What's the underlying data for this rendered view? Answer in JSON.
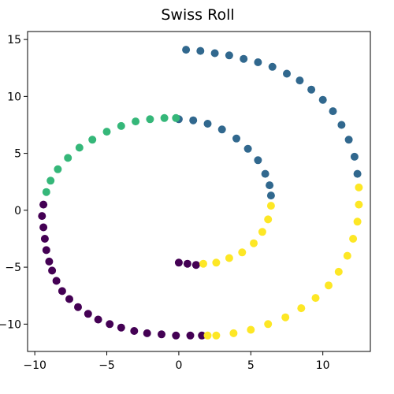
{
  "chart_data": {
    "type": "scatter",
    "title": "Swiss Roll",
    "xlabel": "",
    "ylabel": "",
    "xlim": [
      -10.5,
      13.3
    ],
    "ylim": [
      -12.4,
      15.7
    ],
    "xticks": [
      -10,
      -5,
      0,
      5,
      10
    ],
    "yticks": [
      -10,
      -5,
      0,
      5,
      10,
      15
    ],
    "xtick_labels": [
      "−10",
      "−5",
      "0",
      "5",
      "10"
    ],
    "ytick_labels": [
      "−10",
      "−5",
      "0",
      "5",
      "10",
      "15"
    ],
    "grid": false,
    "legend": "none",
    "series": [
      {
        "color": "#440154",
        "points": [
          [
            0.0,
            -4.6
          ],
          [
            0.6,
            -4.7
          ],
          [
            1.2,
            -4.8
          ],
          [
            -9.4,
            0.5
          ],
          [
            -9.5,
            -0.5
          ],
          [
            -9.4,
            -1.5
          ],
          [
            -9.3,
            -2.5
          ],
          [
            -9.2,
            -3.5
          ],
          [
            -9.0,
            -4.5
          ],
          [
            -8.8,
            -5.3
          ],
          [
            -8.5,
            -6.2
          ],
          [
            -8.1,
            -7.1
          ],
          [
            -7.6,
            -7.8
          ],
          [
            -7.0,
            -8.5
          ],
          [
            -6.3,
            -9.1
          ],
          [
            -5.6,
            -9.6
          ],
          [
            -4.8,
            -10.0
          ],
          [
            -4.0,
            -10.3
          ],
          [
            -3.1,
            -10.6
          ],
          [
            -2.2,
            -10.8
          ],
          [
            -1.2,
            -10.9
          ],
          [
            -0.2,
            -11.0
          ],
          [
            0.8,
            -11.0
          ],
          [
            1.6,
            -11.0
          ]
        ]
      },
      {
        "color": "#31688e",
        "points": [
          [
            0.0,
            8.0
          ],
          [
            1.0,
            7.9
          ],
          [
            2.0,
            7.6
          ],
          [
            3.0,
            7.1
          ],
          [
            4.0,
            6.3
          ],
          [
            4.8,
            5.4
          ],
          [
            5.5,
            4.4
          ],
          [
            6.0,
            3.2
          ],
          [
            6.3,
            2.2
          ],
          [
            6.4,
            1.3
          ],
          [
            0.5,
            14.1
          ],
          [
            1.5,
            14.0
          ],
          [
            2.5,
            13.8
          ],
          [
            3.5,
            13.6
          ],
          [
            4.5,
            13.3
          ],
          [
            5.5,
            13.0
          ],
          [
            6.5,
            12.6
          ],
          [
            7.5,
            12.0
          ],
          [
            8.4,
            11.4
          ],
          [
            9.2,
            10.6
          ],
          [
            10.0,
            9.7
          ],
          [
            10.7,
            8.7
          ],
          [
            11.3,
            7.5
          ],
          [
            11.8,
            6.2
          ],
          [
            12.2,
            4.7
          ],
          [
            12.4,
            3.2
          ]
        ]
      },
      {
        "color": "#35b779",
        "points": [
          [
            -9.2,
            1.6
          ],
          [
            -8.9,
            2.6
          ],
          [
            -8.4,
            3.6
          ],
          [
            -7.7,
            4.6
          ],
          [
            -6.9,
            5.5
          ],
          [
            -6.0,
            6.2
          ],
          [
            -5.0,
            6.9
          ],
          [
            -4.0,
            7.4
          ],
          [
            -3.0,
            7.8
          ],
          [
            -2.0,
            8.0
          ],
          [
            -1.0,
            8.1
          ],
          [
            -0.2,
            8.1
          ]
        ]
      },
      {
        "color": "#fde725",
        "points": [
          [
            6.4,
            0.4
          ],
          [
            6.2,
            -0.8
          ],
          [
            5.8,
            -1.9
          ],
          [
            5.2,
            -2.9
          ],
          [
            4.4,
            -3.7
          ],
          [
            3.5,
            -4.2
          ],
          [
            2.6,
            -4.6
          ],
          [
            1.7,
            -4.7
          ],
          [
            12.5,
            2.0
          ],
          [
            12.5,
            0.5
          ],
          [
            12.4,
            -1.0
          ],
          [
            12.1,
            -2.5
          ],
          [
            11.7,
            -4.0
          ],
          [
            11.1,
            -5.4
          ],
          [
            10.4,
            -6.6
          ],
          [
            9.5,
            -7.7
          ],
          [
            8.5,
            -8.6
          ],
          [
            7.4,
            -9.4
          ],
          [
            6.2,
            -10.0
          ],
          [
            5.0,
            -10.5
          ],
          [
            3.8,
            -10.8
          ],
          [
            2.6,
            -11.0
          ],
          [
            2.0,
            -11.0
          ]
        ]
      }
    ]
  }
}
